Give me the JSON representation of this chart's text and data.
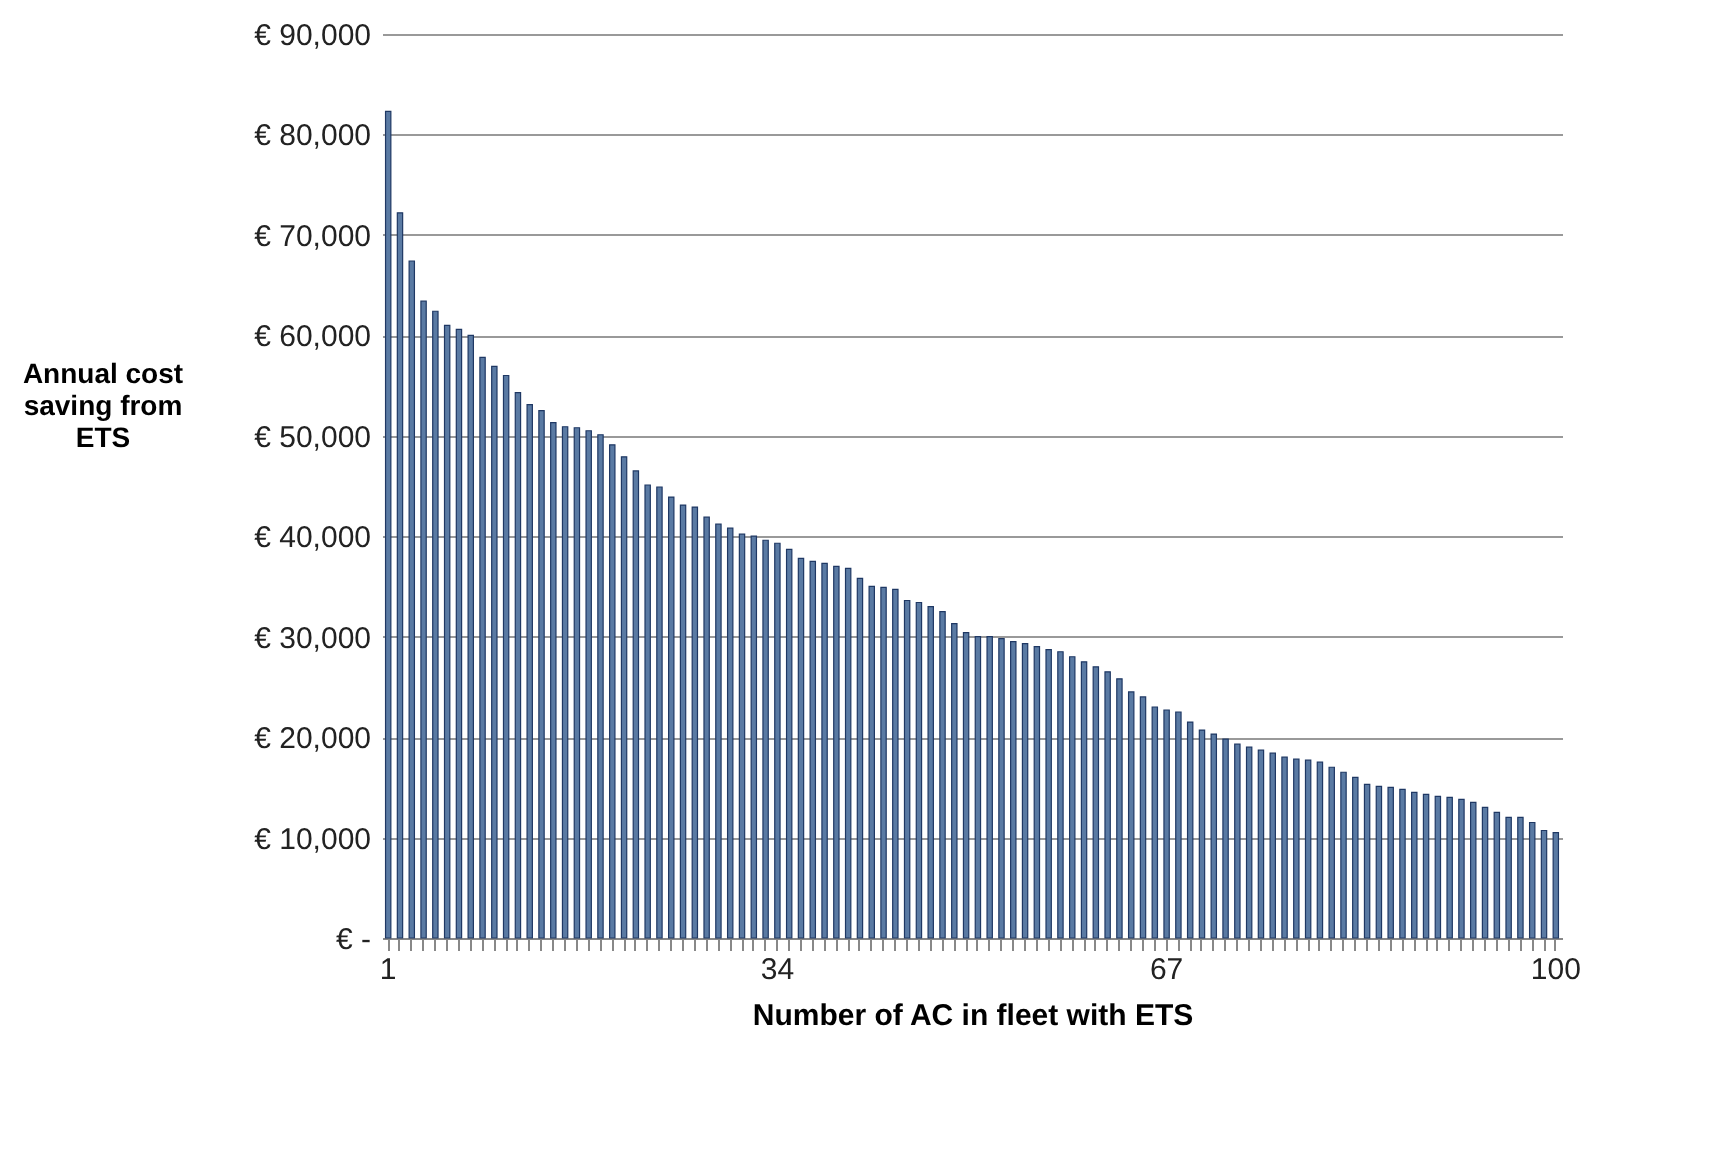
{
  "chart_data": {
    "type": "bar",
    "ylabel": "Annual cost saving from ETS",
    "xlabel": "Number of AC in fleet with ETS",
    "categories": [
      "1",
      null,
      null,
      null,
      null,
      null,
      null,
      null,
      null,
      null,
      null,
      null,
      null,
      null,
      null,
      null,
      null,
      null,
      null,
      null,
      null,
      null,
      null,
      null,
      null,
      null,
      null,
      null,
      null,
      null,
      null,
      null,
      null,
      "34",
      null,
      null,
      null,
      null,
      null,
      null,
      null,
      null,
      null,
      null,
      null,
      null,
      null,
      null,
      null,
      null,
      null,
      null,
      null,
      null,
      null,
      null,
      null,
      null,
      null,
      null,
      null,
      null,
      null,
      null,
      null,
      null,
      "67",
      null,
      null,
      null,
      null,
      null,
      null,
      null,
      null,
      null,
      null,
      null,
      null,
      null,
      null,
      null,
      null,
      null,
      null,
      null,
      null,
      null,
      null,
      null,
      null,
      null,
      null,
      null,
      null,
      null,
      null,
      null,
      null,
      "100"
    ],
    "values": [
      82300,
      72200,
      67400,
      63400,
      62400,
      61000,
      60600,
      60000,
      57800,
      56900,
      56000,
      54300,
      53100,
      52500,
      51300,
      50900,
      50800,
      50500,
      50100,
      49100,
      47900,
      46500,
      45100,
      44900,
      43900,
      43100,
      42900,
      41900,
      41200,
      40800,
      40200,
      40000,
      39600,
      39300,
      38700,
      37800,
      37500,
      37300,
      37000,
      36800,
      35800,
      35000,
      34900,
      34700,
      33600,
      33400,
      33000,
      32500,
      31300,
      30400,
      30000,
      30000,
      29800,
      29500,
      29300,
      29000,
      28700,
      28500,
      28000,
      27500,
      27000,
      26500,
      25800,
      24500,
      24000,
      23000,
      22700,
      22500,
      21500,
      20700,
      20300,
      19800,
      19300,
      19000,
      18700,
      18400,
      18000,
      17800,
      17700,
      17500,
      17000,
      16500,
      16000,
      15300,
      15100,
      15000,
      14800,
      14500,
      14300,
      14100,
      14000,
      13800,
      13500,
      13000,
      12500,
      12000,
      12000,
      11500,
      10700,
      10500
    ],
    "color": "#5a7aa3",
    "ylim": [
      0,
      90000
    ],
    "yticks": [
      {
        "value": 0,
        "label": "€ -"
      },
      {
        "value": 10000,
        "label": "€ 10,000"
      },
      {
        "value": 20000,
        "label": "€ 20,000"
      },
      {
        "value": 30000,
        "label": "€ 30,000"
      },
      {
        "value": 40000,
        "label": "€ 40,000"
      },
      {
        "value": 50000,
        "label": "€ 50,000"
      },
      {
        "value": 60000,
        "label": "€ 60,000"
      },
      {
        "value": 70000,
        "label": "€ 70,000"
      },
      {
        "value": 80000,
        "label": "€ 80,000"
      },
      {
        "value": 90000,
        "label": "€ 90,000"
      }
    ],
    "grid": "y"
  }
}
